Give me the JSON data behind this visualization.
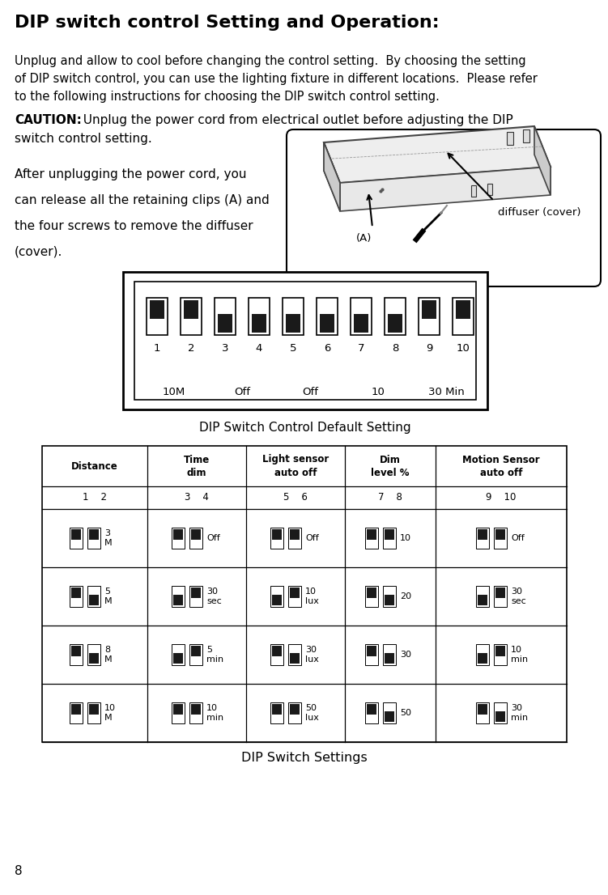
{
  "title": "DIP switch control Setting and Operation:",
  "intro_text_lines": [
    "Unplug and allow to cool before changing the control setting.  By choosing the setting",
    "of DIP switch control, you can use the lighting fixture in different locations.  Please refer",
    "to the following instructions for choosing the DIP switch control setting."
  ],
  "caution_bold": "CAUTION:",
  "caution_rest": "  Unplug the power cord from electrical outlet before adjusting the DIP",
  "caution_line2": "switch control setting.",
  "after_text_lines": [
    "After unplugging the power cord, you",
    "can release all the retaining clips (A) and",
    "the four screws to remove the diffuser",
    "(cover)."
  ],
  "diffuser_label": "diffuser (cover)",
  "A_label": "(A)",
  "default_title": "DIP Switch Control Default Setting",
  "default_labels": [
    "10M",
    "Off",
    "Off",
    "10",
    "30 Min"
  ],
  "default_switch_up": [
    true,
    true,
    false,
    false,
    false,
    false,
    false,
    false,
    true,
    true
  ],
  "table_col_headers": [
    "Distance",
    "Time\ndim",
    "Light sensor\nauto off",
    "Dim\nlevel %",
    "Motion Sensor\nauto off"
  ],
  "table_sub_headers": [
    "1    2",
    "3    4",
    "5    6",
    "7    8",
    "9    10"
  ],
  "table_rows": [
    {
      "switches": [
        [
          true,
          true
        ],
        [
          true,
          true
        ],
        [
          true,
          true
        ],
        [
          true,
          true
        ],
        [
          true,
          true
        ]
      ],
      "labels": [
        "3\nM",
        "Off",
        "Off",
        "10",
        "Off"
      ]
    },
    {
      "switches": [
        [
          true,
          false
        ],
        [
          false,
          true
        ],
        [
          false,
          true
        ],
        [
          true,
          false
        ],
        [
          false,
          true
        ]
      ],
      "labels": [
        "5\nM",
        "30\nsec",
        "10\nlux",
        "20",
        "30\nsec"
      ]
    },
    {
      "switches": [
        [
          true,
          false
        ],
        [
          false,
          true
        ],
        [
          true,
          false
        ],
        [
          true,
          false
        ],
        [
          false,
          true
        ]
      ],
      "labels": [
        "8\nM",
        "5\nmin",
        "30\nlux",
        "30",
        "10\nmin"
      ]
    },
    {
      "switches": [
        [
          true,
          true
        ],
        [
          true,
          true
        ],
        [
          true,
          true
        ],
        [
          true,
          false
        ],
        [
          true,
          false
        ]
      ],
      "labels": [
        "10\nM",
        "10\nmin",
        "50\nlux",
        "50",
        "30\nmin"
      ]
    }
  ],
  "page_number": "8",
  "settings_title": "DIP Switch Settings",
  "bg_color": "#ffffff",
  "text_color": "#000000",
  "switch_on_color": "#1a1a1a",
  "border_color": "#000000"
}
